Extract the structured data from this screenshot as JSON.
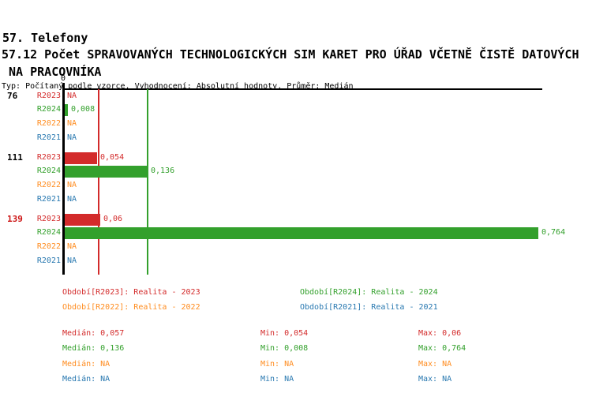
{
  "title": {
    "line1": "57. Telefony",
    "line2": "57.12 Počet SPRAVOVANÝCH TECHNOLOGICKÝCH SIM KARET PRO ÚŘAD VČETNĚ ČISTĚ DATOVÝCH",
    "line3": " NA PRACOVNÍKA",
    "subtitle": "Typ: Počítaný podle vzorce, Vyhodnocení: Absolutní hodnoty, Průměr: Medián"
  },
  "colors": {
    "R2023": "#d32b2b",
    "R2024": "#33a02c",
    "R2022": "#ff8c1f",
    "R2021": "#2878b0",
    "highlight_group_label": "#cc1414",
    "axis": "#000000"
  },
  "chart_data": {
    "type": "bar",
    "orientation": "horizontal",
    "axis": {
      "zero_label": "0",
      "xlim": [
        0,
        0.77
      ],
      "na_text": "NA"
    },
    "series_order": [
      "R2023",
      "R2024",
      "R2022",
      "R2021"
    ],
    "groups": [
      {
        "label": "76",
        "highlighted": false,
        "values": {
          "R2023": null,
          "R2024": 0.008,
          "R2022": null,
          "R2021": null
        },
        "display": {
          "R2023": "NA",
          "R2024": "0,008",
          "R2022": "NA",
          "R2021": "NA"
        }
      },
      {
        "label": "111",
        "highlighted": false,
        "values": {
          "R2023": 0.054,
          "R2024": 0.136,
          "R2022": null,
          "R2021": null
        },
        "display": {
          "R2023": "0,054",
          "R2024": "0,136",
          "R2022": "NA",
          "R2021": "NA"
        }
      },
      {
        "label": "139",
        "highlighted": true,
        "values": {
          "R2023": 0.06,
          "R2024": 0.764,
          "R2022": null,
          "R2021": null
        },
        "display": {
          "R2023": "0,06",
          "R2024": "0,764",
          "R2022": "NA",
          "R2021": "NA"
        }
      }
    ],
    "median_lines": [
      {
        "series": "R2023",
        "value": 0.057
      },
      {
        "series": "R2024",
        "value": 0.136
      }
    ]
  },
  "legend": [
    {
      "series": "R2023",
      "label": "Období[R2023]: Realita - 2023"
    },
    {
      "series": "R2024",
      "label": "Období[R2024]: Realita - 2024"
    },
    {
      "series": "R2022",
      "label": "Období[R2022]: Realita - 2022"
    },
    {
      "series": "R2021",
      "label": "Období[R2021]: Realita - 2021"
    }
  ],
  "stats": {
    "labels": {
      "median": "Medián",
      "min": "Min",
      "max": "Max"
    },
    "rows": [
      {
        "series": "R2023",
        "median": "0,057",
        "min": "0,054",
        "max": "0,06"
      },
      {
        "series": "R2024",
        "median": "0,136",
        "min": "0,008",
        "max": "0,764"
      },
      {
        "series": "R2022",
        "median": "NA",
        "min": "NA",
        "max": "NA"
      },
      {
        "series": "R2021",
        "median": "NA",
        "min": "NA",
        "max": "NA"
      }
    ]
  }
}
